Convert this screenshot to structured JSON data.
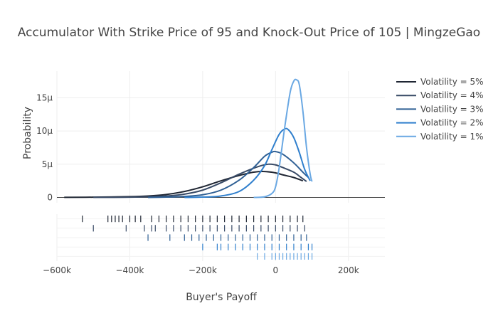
{
  "chart_data": {
    "type": "line",
    "title": "Accumulator With Strike Price of 95 and Knock-Out Price of 105 | MingzeGao",
    "xlabel": "Buyer's Payoff",
    "ylabel": "Probability",
    "xlim": [
      -600000,
      300000
    ],
    "ylim": [
      -8e-07,
      1.9e-05
    ],
    "x_ticks": [
      {
        "value": -600000,
        "label": "−600k"
      },
      {
        "value": -400000,
        "label": "−400k"
      },
      {
        "value": -200000,
        "label": "−200k"
      },
      {
        "value": 0,
        "label": "0"
      },
      {
        "value": 200000,
        "label": "200k"
      }
    ],
    "y_ticks": [
      {
        "value": 0,
        "label": "0"
      },
      {
        "value": 5e-06,
        "label": "5μ"
      },
      {
        "value": 1e-05,
        "label": "10μ"
      },
      {
        "value": 1.5e-05,
        "label": "15μ"
      }
    ],
    "grid": true,
    "legend_position": "right",
    "series": [
      {
        "name": "Volatility = 5%",
        "color": "#1f2633",
        "x": [
          -580000,
          -500000,
          -400000,
          -350000,
          -300000,
          -250000,
          -200000,
          -150000,
          -100000,
          -60000,
          -30000,
          0,
          20000,
          50000,
          75000
        ],
        "y": [
          1e-08,
          4e-08,
          1.2e-07,
          2.2e-07,
          4.5e-07,
          9e-07,
          1.6e-06,
          2.5e-06,
          3.3e-06,
          3.8e-06,
          3.9e-06,
          3.7e-06,
          3.4e-06,
          3e-06,
          2.5e-06
        ]
      },
      {
        "name": "Volatility = 4%",
        "color": "#384a66",
        "x": [
          -500000,
          -400000,
          -300000,
          -250000,
          -200000,
          -150000,
          -100000,
          -50000,
          -20000,
          0,
          20000,
          50000,
          70000,
          85000
        ],
        "y": [
          1e-08,
          4e-08,
          2.2e-07,
          5e-07,
          1.1e-06,
          2.2e-06,
          3.5e-06,
          4.6e-06,
          5e-06,
          4.9e-06,
          4.5e-06,
          3.8e-06,
          3e-06,
          2.4e-06
        ]
      },
      {
        "name": "Volatility = 3%",
        "color": "#2e5f94",
        "x": [
          -350000,
          -300000,
          -250000,
          -200000,
          -150000,
          -100000,
          -60000,
          -30000,
          -10000,
          0,
          20000,
          50000,
          75000,
          90000
        ],
        "y": [
          0.0,
          5e-08,
          1.5e-07,
          4e-07,
          1.1e-06,
          2.6e-06,
          4.5e-06,
          6.2e-06,
          6.8e-06,
          6.9e-06,
          6.5e-06,
          5.2e-06,
          3.8e-06,
          3e-06
        ]
      },
      {
        "name": "Volatility = 2%",
        "color": "#2f7fcd",
        "x": [
          -250000,
          -200000,
          -150000,
          -100000,
          -60000,
          -30000,
          -10000,
          10000,
          25000,
          35000,
          50000,
          65000,
          80000,
          95000
        ],
        "y": [
          0.0,
          5e-08,
          2.2e-07,
          9e-07,
          2.6e-06,
          4.8e-06,
          7.2e-06,
          9.5e-06,
          1.03e-05,
          1.02e-05,
          9e-06,
          6.8e-06,
          4.2e-06,
          2.5e-06
        ]
      },
      {
        "name": "Volatility = 1%",
        "color": "#6aa8e3",
        "x": [
          -60000,
          -30000,
          -10000,
          0,
          10000,
          25000,
          40000,
          50000,
          57000,
          65000,
          75000,
          85000,
          95000,
          100000
        ],
        "y": [
          0.0,
          1e-07,
          6e-07,
          1.6e-06,
          4.5e-06,
          1.05e-05,
          1.58e-05,
          1.75e-05,
          1.77e-05,
          1.7e-05,
          1.3e-05,
          7.5e-06,
          3.5e-06,
          2.4e-06
        ]
      }
    ],
    "rug": [
      {
        "series": "Volatility = 5%",
        "x": [
          -530000,
          -460000,
          -450000,
          -440000,
          -430000,
          -420000,
          -400000,
          -385000,
          -370000,
          -340000,
          -320000,
          -300000,
          -280000,
          -260000,
          -240000,
          -220000,
          -200000,
          -180000,
          -160000,
          -140000,
          -120000,
          -100000,
          -80000,
          -60000,
          -40000,
          -20000,
          0,
          20000,
          40000,
          60000,
          75000
        ]
      },
      {
        "series": "Volatility = 4%",
        "x": [
          -500000,
          -410000,
          -360000,
          -340000,
          -330000,
          -300000,
          -280000,
          -260000,
          -240000,
          -220000,
          -200000,
          -180000,
          -160000,
          -140000,
          -120000,
          -100000,
          -80000,
          -60000,
          -40000,
          -20000,
          0,
          20000,
          40000,
          60000,
          80000
        ]
      },
      {
        "series": "Volatility = 3%",
        "x": [
          -350000,
          -290000,
          -250000,
          -230000,
          -210000,
          -190000,
          -170000,
          -150000,
          -130000,
          -110000,
          -90000,
          -70000,
          -50000,
          -30000,
          -10000,
          10000,
          30000,
          50000,
          70000,
          85000
        ]
      },
      {
        "series": "Volatility = 2%",
        "x": [
          -200000,
          -160000,
          -150000,
          -130000,
          -110000,
          -90000,
          -70000,
          -50000,
          -30000,
          -10000,
          10000,
          30000,
          50000,
          70000,
          90000,
          100000
        ]
      },
      {
        "series": "Volatility = 1%",
        "x": [
          -50000,
          -30000,
          -10000,
          0,
          10000,
          20000,
          30000,
          40000,
          50000,
          60000,
          70000,
          80000,
          90000,
          100000
        ]
      }
    ]
  }
}
